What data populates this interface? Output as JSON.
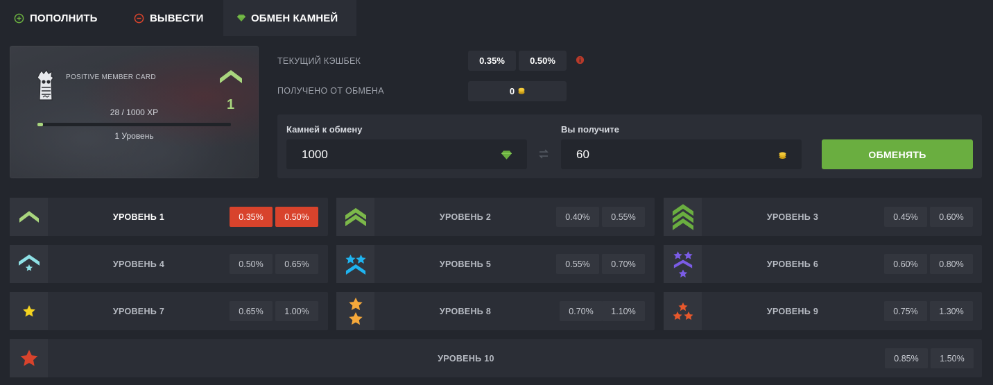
{
  "tabs": [
    {
      "label": "ПОПОЛНИТЬ",
      "icon": "plus-circle-icon",
      "color": "#6aae40"
    },
    {
      "label": "ВЫВЕСТИ",
      "icon": "minus-circle-icon",
      "color": "#d8432c"
    },
    {
      "label": "ОБМЕН КАМНЕЙ",
      "icon": "gem-icon",
      "color": "#6aae40",
      "active": true
    }
  ],
  "card": {
    "title": "POSITIVE MEMBER CARD",
    "level_number": "1",
    "xp_text": "28 / 1000 XP",
    "xp_progress": 0.028,
    "level_text": "1 Уровень"
  },
  "cashback": {
    "label": "ТЕКУЩИЙ КЭШБЕК",
    "value1": "0.35%",
    "value2": "0.50%",
    "received_label": "ПОЛУЧЕНО ОТ ОБМЕНА",
    "received_value": "0"
  },
  "exchange": {
    "give_label": "Камней к обмену",
    "give_value": "1000",
    "get_label": "Вы получите",
    "get_value": "60",
    "button_label": "ОБМЕНЯТЬ"
  },
  "levels": [
    {
      "name": "УРОВЕНЬ 1",
      "p1": "0.35%",
      "p2": "0.50%",
      "icon": "chevron-1-icon",
      "active": true
    },
    {
      "name": "УРОВЕНЬ 2",
      "p1": "0.40%",
      "p2": "0.55%",
      "icon": "chevron-2-icon"
    },
    {
      "name": "УРОВЕНЬ 3",
      "p1": "0.45%",
      "p2": "0.60%",
      "icon": "chevron-3-icon"
    },
    {
      "name": "УРОВЕНЬ 4",
      "p1": "0.50%",
      "p2": "0.65%",
      "icon": "chevron-star-icon"
    },
    {
      "name": "УРОВЕНЬ 5",
      "p1": "0.55%",
      "p2": "0.70%",
      "icon": "two-stars-chevron-icon"
    },
    {
      "name": "УРОВЕНЬ 6",
      "p1": "0.60%",
      "p2": "0.80%",
      "icon": "stars-chevrons-icon"
    },
    {
      "name": "УРОВЕНЬ 7",
      "p1": "0.65%",
      "p2": "1.00%",
      "icon": "star-icon"
    },
    {
      "name": "УРОВЕНЬ 8",
      "p1": "0.70%",
      "p2": "1.10%",
      "icon": "two-stars-icon"
    },
    {
      "name": "УРОВЕНЬ 9",
      "p1": "0.75%",
      "p2": "1.30%",
      "icon": "three-stars-icon"
    },
    {
      "name": "УРОВЕНЬ 10",
      "p1": "0.85%",
      "p2": "1.50%",
      "icon": "red-star-icon"
    }
  ]
}
